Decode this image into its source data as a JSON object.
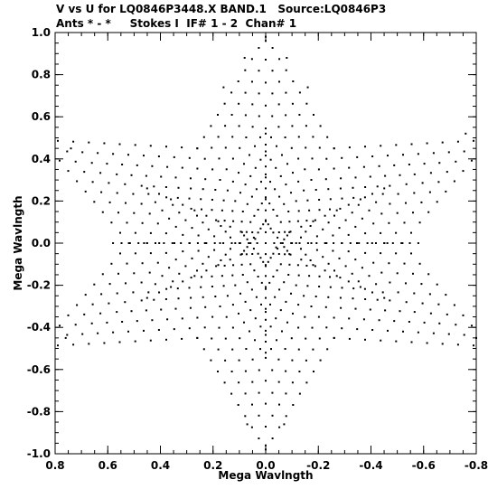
{
  "title": {
    "line1": "V vs U for LQ0846P3448.X BAND.1   Source:LQ0846P3",
    "line2": "Ants * - *     Stokes I  IF# 1 - 2  Chan# 1"
  },
  "chart_data": {
    "type": "scatter",
    "title": "V vs U for LQ0846P3448.X BAND.1   Source:LQ0846P3",
    "subtitle": "Ants * - *     Stokes I  IF# 1 - 2  Chan# 1",
    "xlabel": "Mega Wavlngth",
    "ylabel": "Mega Wavlngth",
    "xlim": [
      0.8,
      -0.8
    ],
    "ylim": [
      -1.0,
      1.0
    ],
    "x_reversed": true,
    "xticks": [
      "0.8",
      "0.6",
      "0.4",
      "0.2",
      "0.0",
      "-0.2",
      "-0.4",
      "-0.6",
      "-0.8"
    ],
    "yticks": [
      "1.0",
      "0.8",
      "0.6",
      "0.4",
      "0.2",
      "0.0",
      "-0.2",
      "-0.4",
      "-0.6",
      "-0.8",
      "-1.0"
    ],
    "marker_color": "#000000",
    "grid": false,
    "pattern": "six-pointed star (two interleaved triangles) of uv-track points",
    "star": {
      "outer_radius": 0.98,
      "inner_radius": 0.52,
      "outer_vertex_angles_deg": [
        90,
        30,
        -30,
        -90,
        -150,
        150
      ],
      "inner_vertex_angles_deg": [
        60,
        0,
        -60,
        -120,
        180,
        120
      ]
    },
    "series": [
      {
        "points": [
          [
            0.0,
            0.96
          ],
          [
            0.08,
            0.88
          ],
          [
            -0.08,
            0.88
          ],
          [
            0.16,
            0.74
          ],
          [
            -0.16,
            0.74
          ],
          [
            0.0,
            0.0
          ],
          [
            0.04,
            0.02
          ],
          [
            -0.04,
            -0.02
          ],
          [
            0.1,
            0.0
          ],
          [
            -0.1,
            0.0
          ],
          [
            0.74,
            0.45
          ],
          [
            -0.76,
            0.52
          ],
          [
            0.76,
            -0.45
          ],
          [
            -0.8,
            -0.45
          ],
          [
            0.0,
            -0.96
          ],
          [
            0.07,
            -0.86
          ],
          [
            -0.07,
            -0.86
          ],
          [
            0.45,
            0.0
          ],
          [
            -0.45,
            0.0
          ],
          [
            0.26,
            0.45
          ],
          [
            -0.26,
            0.45
          ],
          [
            0.26,
            -0.45
          ],
          [
            -0.26,
            -0.45
          ]
        ]
      }
    ]
  }
}
